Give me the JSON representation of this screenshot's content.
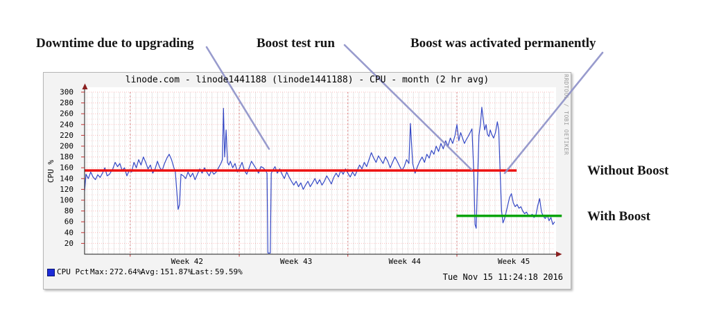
{
  "annotations": {
    "downtime": "Downtime due to upgrading",
    "boost_test": "Boost test run",
    "boost_permanent": "Boost was activated permanently",
    "without_boost": "Without Boost",
    "with_boost": "With Boost"
  },
  "chart_data": {
    "type": "line",
    "title": "linode.com - linode1441188 (linode1441188) - CPU - month (2 hr avg)",
    "ylabel": "CPU %",
    "xlabel": "",
    "watermark": "RRDTOOL / TOBI OETIKER",
    "timestamp": "Tue Nov 15 11:24:18 2016",
    "ylim": [
      0,
      310
    ],
    "ytick_interval": 20,
    "minor_grid_interval": 10,
    "grid": true,
    "legend_position": "bottom-left",
    "legend": {
      "series_label": "CPU Pct",
      "max_label": "Max:",
      "max_value": "272.64%",
      "avg_label": "Avg:",
      "avg_value": "151.87%",
      "last_label": "Last:",
      "last_value": "59.59%"
    },
    "xticklabels": [
      "Week 42",
      "Week 43",
      "Week 44",
      "Week 45"
    ],
    "xtick_positions_pct": [
      21.8,
      45.0,
      68.1,
      91.3
    ],
    "week_gridline_positions_pct": [
      9.7,
      32.9,
      56.0,
      79.2
    ],
    "series": [
      {
        "name": "CPU Pct",
        "color": "#3448c5",
        "width": 1.2,
        "points": [
          [
            0,
            117
          ],
          [
            0.3,
            148
          ],
          [
            0.8,
            140
          ],
          [
            1.3,
            152
          ],
          [
            1.8,
            143
          ],
          [
            2.3,
            138
          ],
          [
            2.8,
            147
          ],
          [
            3.3,
            142
          ],
          [
            3.8,
            150
          ],
          [
            4.3,
            160
          ],
          [
            4.8,
            145
          ],
          [
            5.3,
            148
          ],
          [
            6,
            158
          ],
          [
            6.5,
            170
          ],
          [
            7,
            162
          ],
          [
            7.5,
            168
          ],
          [
            8,
            155
          ],
          [
            8.5,
            160
          ],
          [
            9,
            145
          ],
          [
            9.5,
            155
          ],
          [
            10,
            152
          ],
          [
            10.5,
            170
          ],
          [
            11,
            160
          ],
          [
            11.5,
            175
          ],
          [
            12,
            165
          ],
          [
            12.5,
            180
          ],
          [
            13,
            170
          ],
          [
            13.5,
            158
          ],
          [
            14,
            165
          ],
          [
            14.5,
            150
          ],
          [
            15,
            158
          ],
          [
            15.5,
            172
          ],
          [
            16,
            160
          ],
          [
            16.5,
            155
          ],
          [
            17,
            168
          ],
          [
            17.5,
            178
          ],
          [
            18,
            185
          ],
          [
            18.5,
            175
          ],
          [
            19,
            160
          ],
          [
            19.3,
            152
          ],
          [
            19.6,
            118
          ],
          [
            19.9,
            83
          ],
          [
            20.2,
            92
          ],
          [
            20.5,
            148
          ],
          [
            21,
            145
          ],
          [
            21.5,
            140
          ],
          [
            22,
            152
          ],
          [
            22.5,
            143
          ],
          [
            23,
            150
          ],
          [
            23.5,
            138
          ],
          [
            24,
            148
          ],
          [
            24.5,
            158
          ],
          [
            25,
            150
          ],
          [
            25.5,
            160
          ],
          [
            26,
            152
          ],
          [
            26.5,
            145
          ],
          [
            27,
            155
          ],
          [
            27.5,
            148
          ],
          [
            28,
            152
          ],
          [
            28.5,
            160
          ],
          [
            29,
            168
          ],
          [
            29.3,
            175
          ],
          [
            29.55,
            270
          ],
          [
            29.8,
            180
          ],
          [
            30.1,
            230
          ],
          [
            30.4,
            170
          ],
          [
            30.7,
            165
          ],
          [
            31,
            172
          ],
          [
            31.5,
            160
          ],
          [
            32,
            168
          ],
          [
            32.5,
            152
          ],
          [
            33,
            160
          ],
          [
            33.5,
            170
          ],
          [
            34,
            155
          ],
          [
            34.5,
            148
          ],
          [
            35,
            160
          ],
          [
            35.5,
            172
          ],
          [
            36,
            165
          ],
          [
            36.5,
            158
          ],
          [
            37,
            150
          ],
          [
            37.5,
            162
          ],
          [
            38,
            160
          ],
          [
            38.5,
            155
          ],
          [
            38.8,
            150
          ],
          [
            39,
            2
          ],
          [
            39.5,
            2
          ],
          [
            39.7,
            150
          ],
          [
            40,
            155
          ],
          [
            40.5,
            162
          ],
          [
            41,
            150
          ],
          [
            41.5,
            158
          ],
          [
            42,
            148
          ],
          [
            42.5,
            140
          ],
          [
            43,
            152
          ],
          [
            43.5,
            143
          ],
          [
            44,
            135
          ],
          [
            44.5,
            128
          ],
          [
            45,
            135
          ],
          [
            45.5,
            125
          ],
          [
            46,
            132
          ],
          [
            46.5,
            120
          ],
          [
            47,
            128
          ],
          [
            47.5,
            135
          ],
          [
            48,
            125
          ],
          [
            48.5,
            132
          ],
          [
            49,
            140
          ],
          [
            49.5,
            130
          ],
          [
            50,
            138
          ],
          [
            50.5,
            128
          ],
          [
            51,
            135
          ],
          [
            51.5,
            145
          ],
          [
            52,
            138
          ],
          [
            52.5,
            130
          ],
          [
            53,
            142
          ],
          [
            53.5,
            150
          ],
          [
            54,
            143
          ],
          [
            54.5,
            155
          ],
          [
            55,
            148
          ],
          [
            55.5,
            158
          ],
          [
            56,
            150
          ],
          [
            56.5,
            143
          ],
          [
            57,
            152
          ],
          [
            57.5,
            145
          ],
          [
            58,
            155
          ],
          [
            58.5,
            165
          ],
          [
            59,
            158
          ],
          [
            59.5,
            170
          ],
          [
            60,
            162
          ],
          [
            60.5,
            175
          ],
          [
            61,
            188
          ],
          [
            61.5,
            178
          ],
          [
            62,
            170
          ],
          [
            62.5,
            182
          ],
          [
            63,
            175
          ],
          [
            63.5,
            168
          ],
          [
            64,
            180
          ],
          [
            64.5,
            172
          ],
          [
            65,
            160
          ],
          [
            65.5,
            170
          ],
          [
            66,
            180
          ],
          [
            66.5,
            172
          ],
          [
            67,
            163
          ],
          [
            67.5,
            155
          ],
          [
            68,
            162
          ],
          [
            68.5,
            175
          ],
          [
            69,
            168
          ],
          [
            69.3,
            242
          ],
          [
            69.8,
            168
          ],
          [
            70.3,
            150
          ],
          [
            70.8,
            162
          ],
          [
            71.3,
            172
          ],
          [
            71.8,
            180
          ],
          [
            72.3,
            170
          ],
          [
            72.8,
            185
          ],
          [
            73.3,
            178
          ],
          [
            73.8,
            192
          ],
          [
            74.3,
            185
          ],
          [
            74.8,
            200
          ],
          [
            75.3,
            190
          ],
          [
            75.8,
            205
          ],
          [
            76.3,
            195
          ],
          [
            76.8,
            210
          ],
          [
            77.3,
            200
          ],
          [
            77.8,
            215
          ],
          [
            78.3,
            205
          ],
          [
            78.8,
            220
          ],
          [
            79.2,
            240
          ],
          [
            79.6,
            210
          ],
          [
            80,
            225
          ],
          [
            80.4,
            215
          ],
          [
            80.8,
            205
          ],
          [
            81.2,
            212
          ],
          [
            81.6,
            218
          ],
          [
            82,
            225
          ],
          [
            82.4,
            232
          ],
          [
            82.8,
            150
          ],
          [
            83.05,
            55
          ],
          [
            83.3,
            48
          ],
          [
            83.6,
            140
          ],
          [
            83.9,
            220
          ],
          [
            84.2,
            240
          ],
          [
            84.5,
            272
          ],
          [
            84.8,
            250
          ],
          [
            85.1,
            230
          ],
          [
            85.4,
            240
          ],
          [
            85.7,
            222
          ],
          [
            86,
            218
          ],
          [
            86.3,
            230
          ],
          [
            86.6,
            222
          ],
          [
            87,
            215
          ],
          [
            87.4,
            225
          ],
          [
            87.8,
            245
          ],
          [
            88.1,
            230
          ],
          [
            88.4,
            150
          ],
          [
            88.7,
            80
          ],
          [
            89,
            58
          ],
          [
            89.3,
            65
          ],
          [
            89.6,
            75
          ],
          [
            90,
            90
          ],
          [
            90.4,
            105
          ],
          [
            90.8,
            112
          ],
          [
            91.2,
            95
          ],
          [
            91.6,
            88
          ],
          [
            92,
            92
          ],
          [
            92.4,
            85
          ],
          [
            92.8,
            88
          ],
          [
            93.2,
            80
          ],
          [
            93.6,
            75
          ],
          [
            94,
            78
          ],
          [
            94.4,
            72
          ],
          [
            94.8,
            70
          ],
          [
            95.2,
            74
          ],
          [
            95.6,
            68
          ],
          [
            96,
            72
          ],
          [
            96.4,
            90
          ],
          [
            96.8,
            103
          ],
          [
            97.2,
            78
          ],
          [
            97.6,
            70
          ],
          [
            98,
            66
          ],
          [
            98.4,
            72
          ],
          [
            98.8,
            62
          ],
          [
            99.2,
            68
          ],
          [
            99.6,
            55
          ],
          [
            100,
            60
          ]
        ]
      },
      {
        "name": "Without Boost",
        "type": "hline",
        "color": "#ee1111",
        "width": 3.5,
        "value": 155,
        "x_start_pct": 0,
        "x_end_pct": 91.9
      },
      {
        "name": "With Boost",
        "type": "hline",
        "color": "#07a30a",
        "width": 3.5,
        "value": 71,
        "x_start_pct": 79.1,
        "x_end_pct": 101.5
      }
    ]
  }
}
